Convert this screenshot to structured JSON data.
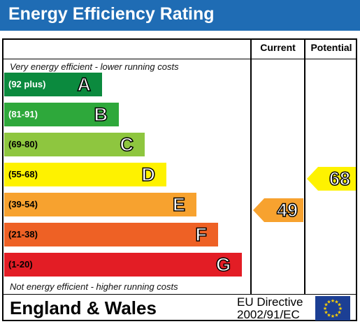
{
  "title": "Energy Efficiency Rating",
  "columns": {
    "current": "Current",
    "potential": "Potential"
  },
  "notes": {
    "top": "Very energy efficient - lower running costs",
    "bottom": "Not energy efficient - higher running costs"
  },
  "footer": {
    "region": "England & Wales",
    "directive_line1": "EU Directive",
    "directive_line2": "2002/91/EC"
  },
  "colors": {
    "title_bar": "#1f6cb4",
    "eu_flag": "#1c3f94",
    "eu_stars": "#ffd200",
    "current_arrow": "#f7a22f",
    "potential_arrow": "#fef200"
  },
  "chart_data": {
    "type": "bar",
    "categories": [
      "A",
      "B",
      "C",
      "D",
      "E",
      "F",
      "G"
    ],
    "ranges": [
      "(92 plus)",
      "(81-91)",
      "(69-80)",
      "(55-68)",
      "(39-54)",
      "(21-38)",
      "(1-20)"
    ],
    "bands": [
      {
        "letter": "A",
        "range": "(92 plus)",
        "color": "#0b8a3e",
        "light_text": true
      },
      {
        "letter": "B",
        "range": "(81-91)",
        "color": "#2ea83b",
        "light_text": true
      },
      {
        "letter": "C",
        "range": "(69-80)",
        "color": "#8ec63f",
        "light_text": false
      },
      {
        "letter": "D",
        "range": "(55-68)",
        "color": "#fef200",
        "light_text": false
      },
      {
        "letter": "E",
        "range": "(39-54)",
        "color": "#f7a22f",
        "light_text": false
      },
      {
        "letter": "F",
        "range": "(21-38)",
        "color": "#ee6125",
        "light_text": false
      },
      {
        "letter": "G",
        "range": "(1-20)",
        "color": "#e31d25",
        "light_text": false
      }
    ],
    "current": 49,
    "potential": 68
  }
}
